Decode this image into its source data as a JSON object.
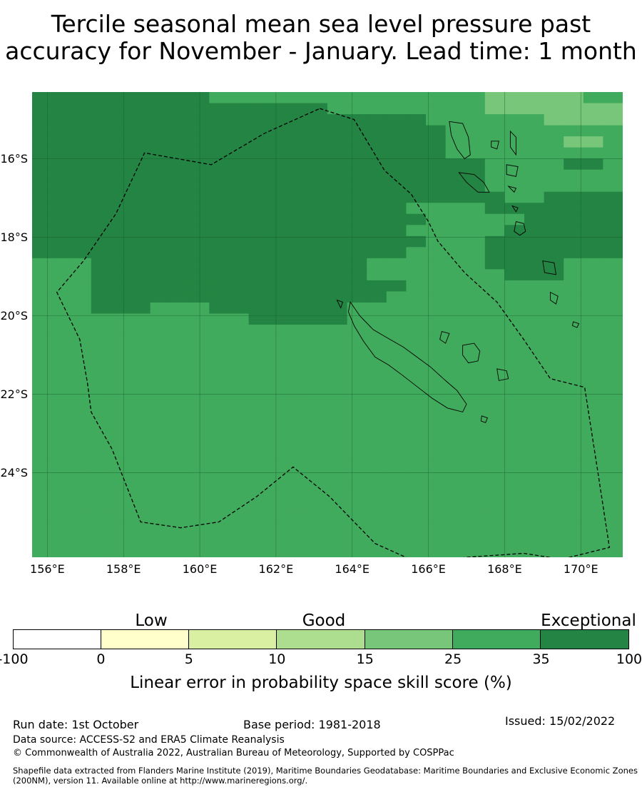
{
  "title": {
    "line1": "Tercile seasonal mean sea level pressure past",
    "line2": "accuracy for November - January. Lead time: 1 month"
  },
  "map": {
    "lon_range": [
      155.6,
      171.1
    ],
    "lat_range": [
      -26.15,
      -14.3
    ],
    "lat_ticks": [
      {
        "value": -16,
        "label": "16°S"
      },
      {
        "value": -18,
        "label": "18°S"
      },
      {
        "value": -20,
        "label": "20°S"
      },
      {
        "value": -22,
        "label": "22°S"
      },
      {
        "value": -24,
        "label": "24°S"
      }
    ],
    "lon_ticks": [
      {
        "value": 156,
        "label": "156°E"
      },
      {
        "value": 158,
        "label": "158°E"
      },
      {
        "value": 160,
        "label": "160°E"
      },
      {
        "value": 162,
        "label": "162°E"
      },
      {
        "value": 164,
        "label": "164°E"
      },
      {
        "value": 166,
        "label": "166°E"
      },
      {
        "value": 168,
        "label": "168°E"
      },
      {
        "value": 170,
        "label": "170°E"
      }
    ],
    "skill_colors": {
      "class_15_25": "#78c679",
      "class_25_35": "#41ab5d",
      "class_35_100": "#238443"
    },
    "grid_rows": [
      "DDDDDDDDDMMMMMMMMMMMMMMLLLLLMM",
      "DDDDDDDDDDDDDDDMMMMMMMMLLLLLLL",
      "DDDDDDDDDDDDDDDDDDDDMMMMMMLLLL",
      "DDDDDDDDDDDDDDDDDDDDDMMMMMMMMM",
      "DDDDDDDDDDDDDDDDDDDDDMMMMMMLLM",
      "DDDDDDDDDDDDDDDDDDDDDMMMMMMMMM",
      "DDDDDDDDDDDDDDDDDDDDDDDMMMMDDM",
      "DDDDDDDDDDDDDDDDDDDDDDDMMMMMMM",
      "DDDDDDDDDDDDDDDDDDDDDDDMMMMMMM",
      "DDDDDDDDDDDDDDDDDDDDDDDDMMDDDD",
      "DDDDDDDDDDDDDDDDDDDMMMMDDDDDDD",
      "DDDDDDDDDDDDDDDDDDDDMMMMMDDDDD",
      "DDDDDDDDDDDDDDDDDDDMMMMMDDDDDD",
      "DDDDDDDDDDDDDDDDDDDDMMMDDDDDDD",
      "DDDDDDDDDDDDDDDDDDDMMMMDDDDDDD",
      "MMMDDDDDDDDDDDDDDMMMMMMDDDDMMM",
      "MMMDDDDDDDDDDDDDDMMMMMMMDDDMMM",
      "MMMDDDDDDDDDDDDDDDDMMMMMMMMMMM",
      "MMMDDDDDDDDDDDDDDDMMMMMMMMMMMM",
      "MMMDDDMMMDDDDDDDMMMMMMMMMMMMMM",
      "MMMMMMMMMMMDDDDDMMMMMMMMMMMMMM",
      "MMMMMMMMMMMMMMMMMMMMMMMMMMMMMM",
      "MMMMMMMMMMMMMMMMMMMMMMMMMMMMMM",
      "MMMMMMMMMMMMMMMMMMMMMMMMMMMMMM",
      "MMMMMMMMMMMMMMMMMMMMMMMMMMMMMM",
      "MMMMMMMMMMMMMMMMMMMMMMMMMMMMMM",
      "MMMMMMMMMMMMMMMMMMMMMMMMMMMMMM",
      "MMMMMMMMMMMMMMMMMMMMMMMMMMMMMM",
      "MMMMMMMMMMMMMMMMMMMMMMMMMMMMMM",
      "MMMMMMMMMMMMMMMMMMMMMMMMMMMMMM",
      "MMMMMMMMMMMMMMMMMMMMMMMMMMMMMM",
      "MMMMMMMMMMMMMMMMMMMMMMMMMMMMMM",
      "MMMMMMMMMMMMMMMMMMMMMMMMMMMMMM",
      "MMMMMMMMMMMMMMMMMMMMMMMMMMMMMM",
      "MMMMMMMMMMMMMMMMMMMMMMMMMMMMMM",
      "MMMMMMMMMMMMMMMMMMMMMMMMMMMMMM",
      "MMMMMMMMMMMMMMMMMMMMMMMMMMMMMM",
      "MMMMMMMMMMMMMMMMMMMMMMMMMMMMMM",
      "MMMMMMMMMMMMMMMMMMMMMMMMMMMMMM",
      "MMMMMMMMMMMMMMMMMMMMMMMMMMMMMM",
      "MMMMMMMMMMMMMMMMMMMMMMMMMMMMMM",
      "MMMMMMMMMMMMMMMMMMMMMMMMMMMMMM"
    ],
    "eez_boundary": [
      [
        163.15,
        -14.72
      ],
      [
        164.05,
        -15.0
      ],
      [
        164.85,
        -16.3
      ],
      [
        165.55,
        -16.9
      ],
      [
        166.0,
        -17.6
      ],
      [
        166.25,
        -18.1
      ],
      [
        166.95,
        -18.9
      ],
      [
        167.8,
        -19.65
      ],
      [
        168.5,
        -20.6
      ],
      [
        169.2,
        -21.6
      ],
      [
        170.1,
        -21.82
      ],
      [
        170.45,
        -24.0
      ],
      [
        170.75,
        -25.9
      ],
      [
        169.5,
        -26.2
      ],
      [
        168.5,
        -26.05
      ],
      [
        167.0,
        -26.15
      ],
      [
        165.8,
        -26.32
      ],
      [
        164.6,
        -25.8
      ],
      [
        163.4,
        -24.6
      ],
      [
        162.45,
        -23.85
      ],
      [
        161.5,
        -24.6
      ],
      [
        160.5,
        -25.25
      ],
      [
        159.5,
        -25.4
      ],
      [
        158.45,
        -25.25
      ],
      [
        157.7,
        -23.4
      ],
      [
        157.15,
        -22.45
      ],
      [
        157.05,
        -21.7
      ],
      [
        156.85,
        -20.6
      ],
      [
        156.25,
        -19.4
      ],
      [
        156.95,
        -18.6
      ],
      [
        157.8,
        -17.4
      ],
      [
        158.55,
        -15.85
      ],
      [
        160.3,
        -16.15
      ],
      [
        161.7,
        -15.35
      ],
      [
        163.15,
        -14.72
      ]
    ],
    "islands": [
      [
        [
          163.95,
          -19.65
        ],
        [
          164.2,
          -20.0
        ],
        [
          164.55,
          -20.35
        ],
        [
          164.9,
          -20.55
        ],
        [
          165.35,
          -20.8
        ],
        [
          165.7,
          -21.05
        ],
        [
          166.05,
          -21.3
        ],
        [
          166.45,
          -21.65
        ],
        [
          166.75,
          -21.9
        ],
        [
          167.0,
          -22.25
        ],
        [
          166.9,
          -22.45
        ],
        [
          166.5,
          -22.35
        ],
        [
          166.1,
          -22.1
        ],
        [
          165.7,
          -21.8
        ],
        [
          165.3,
          -21.5
        ],
        [
          164.95,
          -21.25
        ],
        [
          164.6,
          -21.05
        ],
        [
          164.3,
          -20.65
        ],
        [
          164.05,
          -20.25
        ],
        [
          163.9,
          -19.9
        ]
      ],
      [
        [
          166.9,
          -20.75
        ],
        [
          167.2,
          -20.7
        ],
        [
          167.35,
          -20.9
        ],
        [
          167.3,
          -21.15
        ],
        [
          167.05,
          -21.2
        ],
        [
          166.9,
          -21.0
        ]
      ],
      [
        [
          166.35,
          -20.4
        ],
        [
          166.55,
          -20.45
        ],
        [
          166.45,
          -20.7
        ],
        [
          166.3,
          -20.6
        ]
      ],
      [
        [
          167.8,
          -21.35
        ],
        [
          168.05,
          -21.4
        ],
        [
          168.1,
          -21.6
        ],
        [
          167.85,
          -21.65
        ]
      ],
      [
        [
          167.4,
          -22.55
        ],
        [
          167.55,
          -22.6
        ],
        [
          167.5,
          -22.72
        ],
        [
          167.38,
          -22.68
        ]
      ],
      [
        [
          163.6,
          -19.6
        ],
        [
          163.75,
          -19.65
        ],
        [
          163.7,
          -19.8
        ]
      ],
      [
        [
          166.55,
          -15.05
        ],
        [
          166.9,
          -15.1
        ],
        [
          167.05,
          -15.45
        ],
        [
          167.1,
          -15.9
        ],
        [
          166.95,
          -16.0
        ],
        [
          166.75,
          -15.75
        ],
        [
          166.6,
          -15.4
        ]
      ],
      [
        [
          166.8,
          -16.35
        ],
        [
          167.2,
          -16.4
        ],
        [
          167.45,
          -16.6
        ],
        [
          167.6,
          -16.85
        ],
        [
          167.3,
          -16.85
        ],
        [
          167.0,
          -16.6
        ]
      ],
      [
        [
          168.15,
          -15.3
        ],
        [
          168.3,
          -15.45
        ],
        [
          168.3,
          -15.9
        ],
        [
          168.15,
          -15.7
        ]
      ],
      [
        [
          167.65,
          -15.55
        ],
        [
          167.85,
          -15.55
        ],
        [
          167.8,
          -15.75
        ],
        [
          167.65,
          -15.7
        ]
      ],
      [
        [
          168.05,
          -16.15
        ],
        [
          168.35,
          -16.2
        ],
        [
          168.3,
          -16.45
        ],
        [
          168.05,
          -16.4
        ]
      ],
      [
        [
          168.1,
          -16.7
        ],
        [
          168.3,
          -16.75
        ],
        [
          168.25,
          -16.85
        ]
      ],
      [
        [
          168.2,
          -17.2
        ],
        [
          168.35,
          -17.25
        ],
        [
          168.3,
          -17.35
        ]
      ],
      [
        [
          168.3,
          -17.6
        ],
        [
          168.5,
          -17.65
        ],
        [
          168.55,
          -17.85
        ],
        [
          168.4,
          -17.95
        ],
        [
          168.25,
          -17.85
        ]
      ],
      [
        [
          169.0,
          -18.6
        ],
        [
          169.3,
          -18.65
        ],
        [
          169.35,
          -18.95
        ],
        [
          169.05,
          -18.9
        ]
      ],
      [
        [
          169.2,
          -19.4
        ],
        [
          169.4,
          -19.5
        ],
        [
          169.35,
          -19.7
        ],
        [
          169.2,
          -19.6
        ]
      ],
      [
        [
          169.8,
          -20.15
        ],
        [
          169.95,
          -20.2
        ],
        [
          169.9,
          -20.3
        ],
        [
          169.78,
          -20.25
        ]
      ]
    ]
  },
  "colorbar": {
    "categories": [
      "Low",
      "Good",
      "Exceptional"
    ],
    "colors": [
      "#ffffff",
      "#ffffcc",
      "#d9f0a3",
      "#addd8e",
      "#78c679",
      "#41ab5d",
      "#238443"
    ],
    "ticks": [
      "-100",
      "0",
      "5",
      "10",
      "15",
      "25",
      "35",
      "100"
    ],
    "label": "Linear error in probability space skill score (%)"
  },
  "footer": {
    "run_date": "Run date: 1st October",
    "base_period": "Base period: 1981-2018",
    "issued": "Issued: 15/02/2022",
    "data_source": "Data source: ACCESS-S2 and ERA5 Climate Reanalysis",
    "copyright": "© Commonwealth of Australia 2022, Australian Bureau of Meteorology, Supported by COSPPac",
    "shapefile_note": "Shapefile data extracted from Flanders Marine Institute (2019), Maritime Boundaries Geodatabase: Maritime Boundaries and Exclusive Economic Zones (200NM), version 11. Available online at http://www.marineregions.org/."
  }
}
